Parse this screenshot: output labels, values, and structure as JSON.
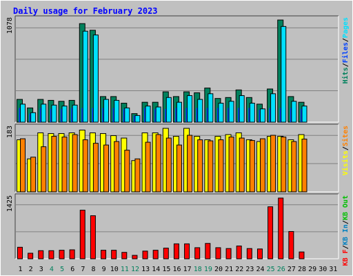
{
  "title": "Daily usage for February 2023",
  "colors": {
    "frame": "#c0c0c0",
    "plot_bg": "#c0c0c0",
    "title": "#0000ff",
    "hits": "#00805c",
    "files": "#0040ff",
    "pages": "#00e0ff",
    "visits": "#ffff00",
    "sites": "#ff8000",
    "kbin": "#0080c0",
    "kbout": "#00c000",
    "kbf": "#ff0000",
    "weekday": "#000000",
    "weekend": "#00805c",
    "grid": "#808080"
  },
  "chart_data": [
    {
      "type": "bar",
      "panel": "hits-files-pages",
      "ymax": 1078,
      "ymax_label": "1078",
      "right_labels": [
        {
          "text": "Hits",
          "color": "#00805c"
        },
        {
          "text": "/",
          "color": "#000000"
        },
        {
          "text": "Files",
          "color": "#0040ff"
        },
        {
          "text": "/",
          "color": "#000000"
        },
        {
          "text": "Pages",
          "color": "#00e0ff"
        }
      ],
      "series": [
        {
          "name": "Hits",
          "values": [
            240,
            150,
            240,
            230,
            220,
            230,
            1040,
            970,
            270,
            270,
            200,
            90,
            210,
            210,
            320,
            270,
            320,
            310,
            360,
            250,
            260,
            340,
            260,
            190,
            350,
            1078,
            270,
            210
          ]
        },
        {
          "name": "Files",
          "values": [
            150,
            90,
            150,
            140,
            140,
            150,
            150,
            150,
            150,
            150,
            140,
            70,
            150,
            140,
            140,
            150,
            150,
            150,
            150,
            150,
            150,
            150,
            150,
            130,
            150,
            150,
            150,
            140
          ]
        },
        {
          "name": "Pages",
          "values": [
            190,
            100,
            190,
            180,
            170,
            180,
            960,
            920,
            240,
            230,
            150,
            70,
            170,
            160,
            260,
            210,
            280,
            240,
            300,
            200,
            220,
            280,
            200,
            140,
            300,
            1010,
            220,
            170
          ]
        }
      ]
    },
    {
      "type": "bar",
      "panel": "visits-sites",
      "ymax": 183,
      "ymax_label": "183",
      "right_labels": [
        {
          "text": "Visits",
          "color": "#ffff00"
        },
        {
          "text": "/",
          "color": "#000000"
        },
        {
          "text": "Sites",
          "color": "#ff8000"
        }
      ],
      "series": [
        {
          "name": "Visits",
          "values": [
            150,
            95,
            170,
            168,
            168,
            170,
            178,
            170,
            168,
            162,
            155,
            90,
            170,
            170,
            183,
            160,
            183,
            160,
            150,
            160,
            165,
            170,
            150,
            145,
            160,
            160,
            150,
            165
          ]
        },
        {
          "name": "Sites",
          "values": [
            153,
            100,
            130,
            160,
            158,
            165,
            150,
            140,
            135,
            145,
            120,
            95,
            143,
            165,
            155,
            135,
            163,
            150,
            147,
            150,
            158,
            155,
            148,
            153,
            163,
            158,
            145,
            152
          ]
        }
      ]
    },
    {
      "type": "bar",
      "panel": "kbytes",
      "ymax": 1425,
      "ymax_label": "1425",
      "right_labels": [
        {
          "text": "KB F",
          "color": "#ff0000"
        },
        {
          "text": "/",
          "color": "#000000"
        },
        {
          "text": "KB In",
          "color": "#0080c0"
        },
        {
          "text": "/",
          "color": "#000000"
        },
        {
          "text": "KB Out",
          "color": "#00c000"
        }
      ],
      "series": [
        {
          "name": "KB F",
          "values": [
            270,
            130,
            190,
            190,
            200,
            210,
            1140,
            1010,
            200,
            200,
            150,
            80,
            180,
            200,
            250,
            350,
            350,
            260,
            360,
            260,
            240,
            300,
            240,
            230,
            1220,
            1425,
            640,
            160
          ]
        }
      ]
    }
  ],
  "x_labels": [
    {
      "label": "1",
      "weekend": false
    },
    {
      "label": "2",
      "weekend": false
    },
    {
      "label": "3",
      "weekend": false
    },
    {
      "label": "4",
      "weekend": true
    },
    {
      "label": "5",
      "weekend": true
    },
    {
      "label": "6",
      "weekend": false
    },
    {
      "label": "7",
      "weekend": false
    },
    {
      "label": "8",
      "weekend": false
    },
    {
      "label": "9",
      "weekend": false
    },
    {
      "label": "10",
      "weekend": false
    },
    {
      "label": "11",
      "weekend": true
    },
    {
      "label": "12",
      "weekend": true
    },
    {
      "label": "13",
      "weekend": false
    },
    {
      "label": "14",
      "weekend": false
    },
    {
      "label": "15",
      "weekend": false
    },
    {
      "label": "16",
      "weekend": false
    },
    {
      "label": "17",
      "weekend": false
    },
    {
      "label": "18",
      "weekend": true
    },
    {
      "label": "19",
      "weekend": true
    },
    {
      "label": "20",
      "weekend": false
    },
    {
      "label": "21",
      "weekend": false
    },
    {
      "label": "22",
      "weekend": false
    },
    {
      "label": "23",
      "weekend": false
    },
    {
      "label": "24",
      "weekend": false
    },
    {
      "label": "25",
      "weekend": true
    },
    {
      "label": "26",
      "weekend": true
    },
    {
      "label": "27",
      "weekend": false
    },
    {
      "label": "28",
      "weekend": false
    },
    {
      "label": "29",
      "weekend": false
    },
    {
      "label": "30",
      "weekend": false
    },
    {
      "label": "31",
      "weekend": false
    }
  ]
}
